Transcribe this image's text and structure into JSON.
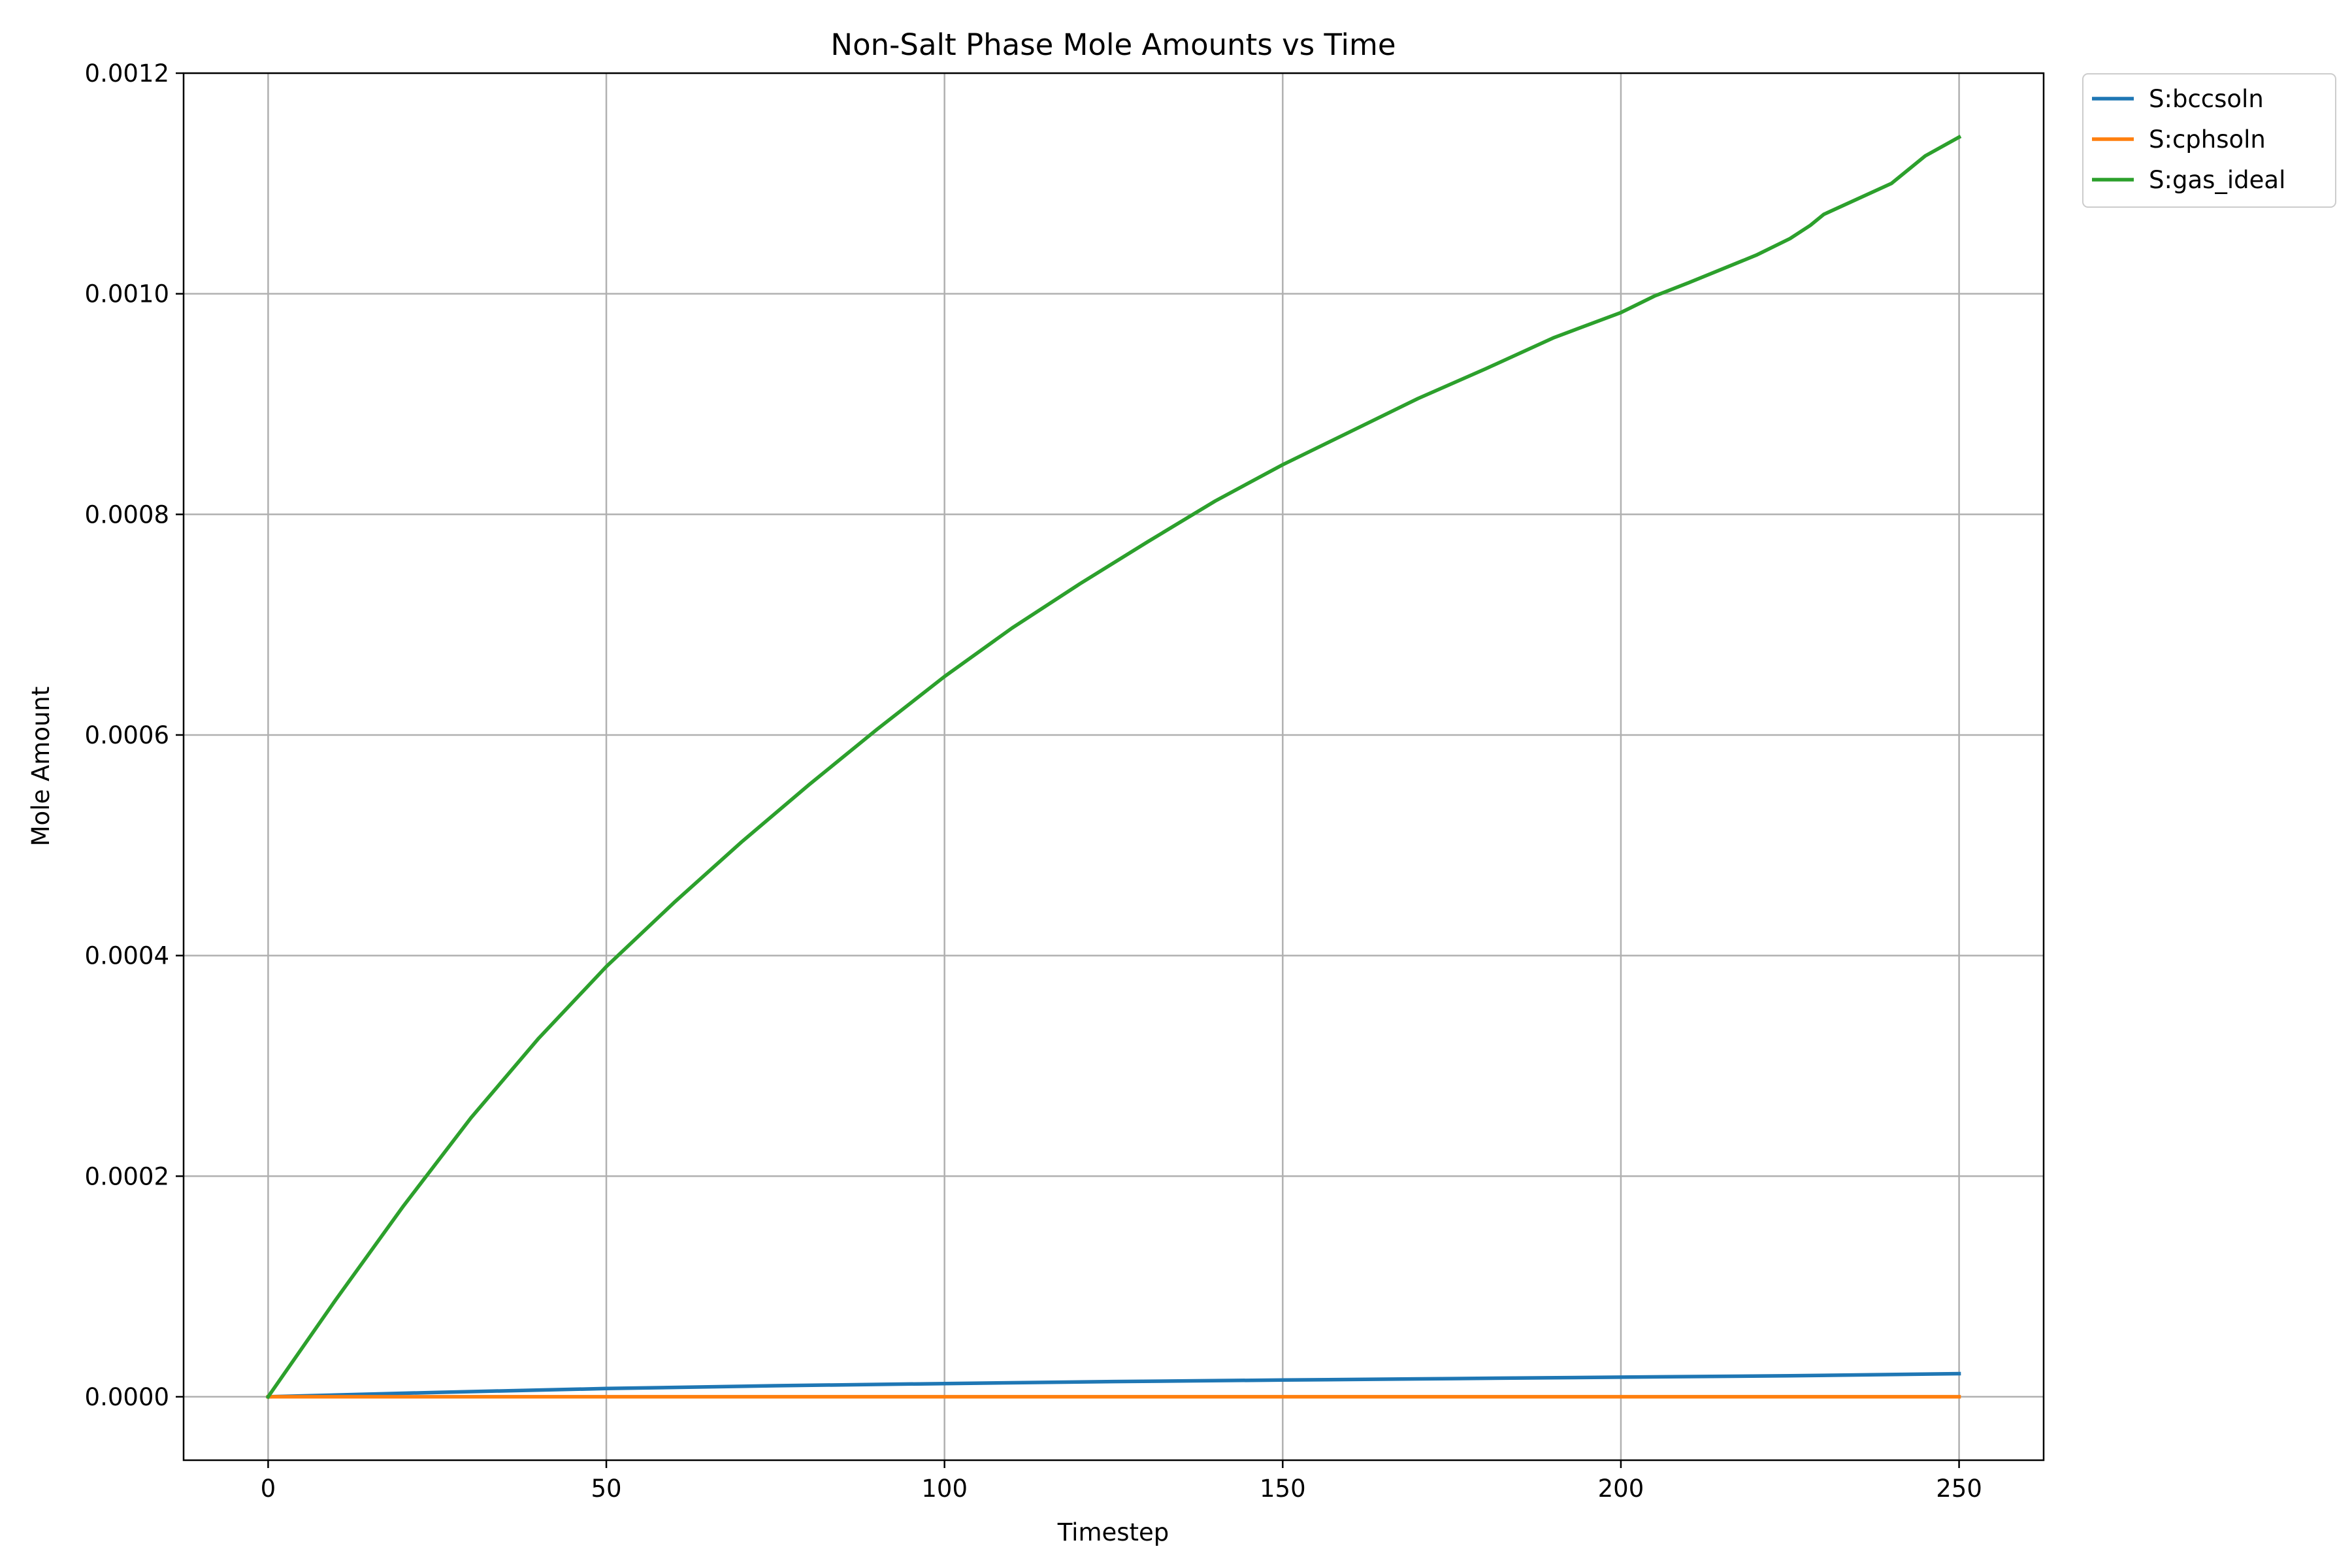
{
  "chart_data": {
    "type": "line",
    "title": "Non-Salt Phase Mole Amounts vs Time",
    "xlabel": "Timestep",
    "ylabel": "Mole Amount",
    "xlim": [
      -12.5,
      262.5
    ],
    "ylim": [
      -5.75e-05,
      0.0012
    ],
    "xticks": [
      0,
      50,
      100,
      150,
      200,
      250
    ],
    "xtick_labels": [
      "0",
      "50",
      "100",
      "150",
      "200",
      "250"
    ],
    "yticks": [
      0,
      0.0002,
      0.0004,
      0.0006,
      0.0008,
      0.001,
      0.0012
    ],
    "ytick_labels": [
      "0.0000",
      "0.0002",
      "0.0004",
      "0.0006",
      "0.0008",
      "0.0010",
      "0.0012"
    ],
    "grid": true,
    "legend_position": "outside-top-right",
    "series": [
      {
        "name": "S:bccsoln",
        "color": "#1f77b4",
        "x": [
          0,
          25,
          50,
          75,
          100,
          125,
          150,
          175,
          200,
          225,
          250
        ],
        "y": [
          0,
          4e-06,
          7.5e-06,
          1e-05,
          1.2e-05,
          1.38e-05,
          1.52e-05,
          1.65e-05,
          1.78e-05,
          1.9e-05,
          2.1e-05
        ]
      },
      {
        "name": "S:cphsoln",
        "color": "#ff7f0e",
        "x": [
          0,
          50,
          100,
          150,
          200,
          250
        ],
        "y": [
          0,
          0,
          0,
          0,
          0,
          0
        ]
      },
      {
        "name": "S:gas_ideal",
        "color": "#2ca02c",
        "x": [
          0,
          10,
          20,
          30,
          40,
          50,
          60,
          70,
          80,
          90,
          100,
          110,
          120,
          130,
          140,
          150,
          160,
          170,
          180,
          190,
          200,
          205,
          210,
          220,
          225,
          228,
          230,
          240,
          245,
          250
        ],
        "y": [
          0,
          8.8e-05,
          0.000173,
          0.000253,
          0.000325,
          0.00039,
          0.000448,
          0.000503,
          0.000555,
          0.000605,
          0.000653,
          0.000697,
          0.000737,
          0.000775,
          0.000812,
          0.000845,
          0.000875,
          0.000905,
          0.000932,
          0.00096,
          0.000983,
          0.000998,
          0.00101,
          0.001035,
          0.00105,
          0.001062,
          0.001072,
          0.0011,
          0.001125,
          0.001142
        ]
      }
    ]
  }
}
